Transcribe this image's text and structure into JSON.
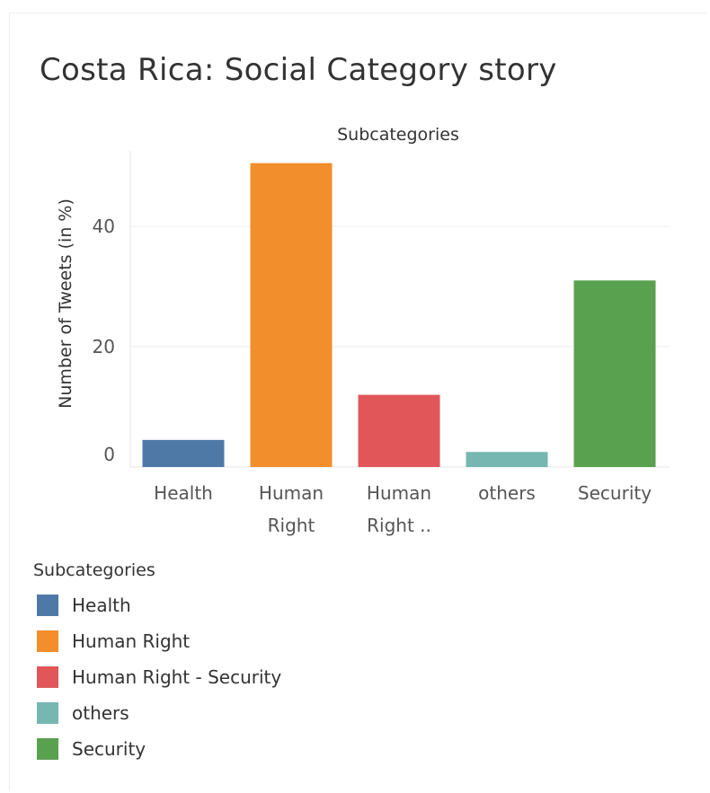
{
  "title": "Costa Rica: Social Category story",
  "chart_data": {
    "type": "bar",
    "title": "Subcategories",
    "ylabel": "Number of Tweets (in %)",
    "xlabel": "",
    "categories": [
      "Health",
      "Human Right",
      "Human Right - Security",
      "others",
      "Security"
    ],
    "tick_labels": [
      [
        "Health"
      ],
      [
        "Human",
        "Right"
      ],
      [
        "Human",
        "Right .."
      ],
      [
        "others"
      ],
      [
        "Security"
      ]
    ],
    "values": [
      4.5,
      50.5,
      12.0,
      2.5,
      31.0
    ],
    "colors": [
      "#4e79a7",
      "#f28e2b",
      "#e15759",
      "#76b7b2",
      "#59a14f"
    ],
    "yticks": [
      0,
      20,
      40
    ],
    "ylim": [
      0,
      52
    ],
    "grid": true
  },
  "legend": {
    "title": "Subcategories",
    "items": [
      {
        "label": "Health",
        "color": "#4e79a7"
      },
      {
        "label": "Human Right",
        "color": "#f28e2b"
      },
      {
        "label": "Human Right - Security",
        "color": "#e15759"
      },
      {
        "label": "others",
        "color": "#76b7b2"
      },
      {
        "label": "Security",
        "color": "#59a14f"
      }
    ]
  }
}
